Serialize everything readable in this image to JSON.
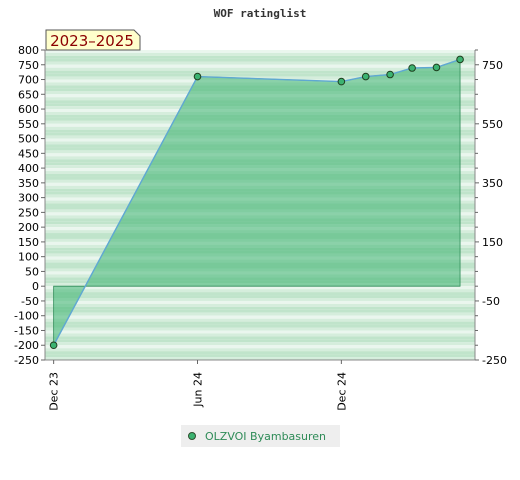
{
  "chart_data": {
    "type": "line",
    "title": "WOF ratinglist",
    "badge": "2023–2025",
    "x_ticks": [
      "Dec 23",
      "Jun 24",
      "Dec 24"
    ],
    "y_left_ticks": [
      "800",
      "750",
      "700",
      "650",
      "600",
      "550",
      "500",
      "450",
      "400",
      "350",
      "300",
      "250",
      "200",
      "150",
      "100",
      "50",
      "0",
      "-50",
      "-100",
      "-150",
      "-200",
      "-250"
    ],
    "y_right_ticks": [
      "750",
      "550",
      "350",
      "150",
      "-50",
      "-250"
    ],
    "ylim": [
      -250,
      800
    ],
    "xlim": [
      "2023-11-20",
      "2025-05-20"
    ],
    "baseline": 0,
    "grid": true,
    "legend_position": "bottom-center",
    "colors": {
      "line": "#5fa8d3",
      "area": "#3cb371",
      "marker": "#3a8a4a",
      "badge_bg": "#ffffcc",
      "band_dark": "#b5dfc2",
      "band_light": "#eaf6ee"
    },
    "series": [
      {
        "name": "OLZVOI Byambasuren",
        "x": [
          "2023-12-01",
          "2024-06-01",
          "2024-12-01",
          "2025-01-01",
          "2025-02-01",
          "2025-03-01",
          "2025-04-01",
          "2025-05-01"
        ],
        "values": [
          -200,
          710,
          693,
          710,
          717,
          739,
          741,
          768
        ]
      }
    ]
  }
}
